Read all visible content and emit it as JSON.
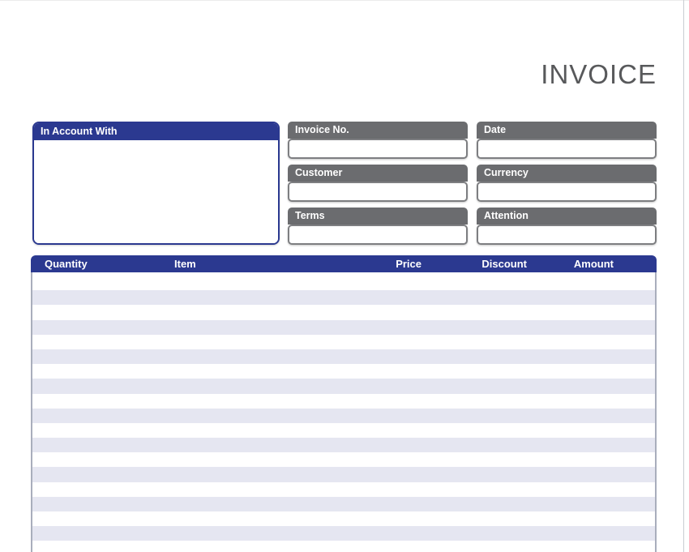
{
  "page": {
    "title": "INVOICE"
  },
  "account_box": {
    "label": "In Account With",
    "value": ""
  },
  "fields": [
    {
      "id": "invoice_no",
      "label": "Invoice No.",
      "value": ""
    },
    {
      "id": "date",
      "label": "Date",
      "value": ""
    },
    {
      "id": "customer",
      "label": "Customer",
      "value": ""
    },
    {
      "id": "currency",
      "label": "Currency",
      "value": ""
    },
    {
      "id": "terms",
      "label": "Terms",
      "value": ""
    },
    {
      "id": "attention",
      "label": "Attention",
      "value": ""
    }
  ],
  "table": {
    "columns": [
      "Quantity",
      "Item",
      "Price",
      "Discount",
      "Amount"
    ],
    "rows": [],
    "visible_empty_rows": 19
  },
  "colors": {
    "navy": "#2b3990",
    "header_gray": "#6b6c6f",
    "row_stripe": "#e5e6f1",
    "title_gray": "#58595b"
  }
}
